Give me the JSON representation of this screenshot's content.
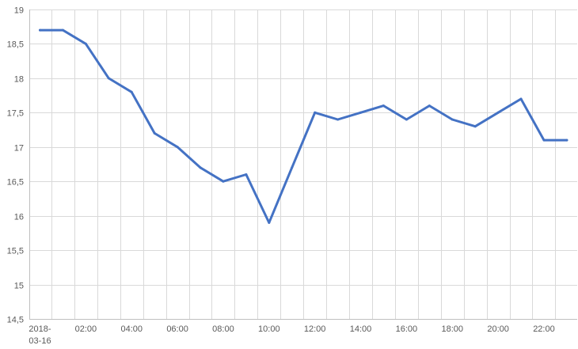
{
  "chart_data": {
    "type": "line",
    "title": "",
    "xlabel": "",
    "ylabel": "",
    "ylim": [
      14.5,
      19
    ],
    "y_ticks": [
      "14,5",
      "15",
      "15,5",
      "16",
      "16,5",
      "17",
      "17,5",
      "18",
      "18,5",
      "19"
    ],
    "x_tick_labels": [
      {
        "hour": 0,
        "lines": [
          "2018-",
          "03-16"
        ]
      },
      {
        "hour": 2,
        "lines": [
          "02:00"
        ]
      },
      {
        "hour": 4,
        "lines": [
          "04:00"
        ]
      },
      {
        "hour": 6,
        "lines": [
          "06:00"
        ]
      },
      {
        "hour": 8,
        "lines": [
          "08:00"
        ]
      },
      {
        "hour": 10,
        "lines": [
          "10:00"
        ]
      },
      {
        "hour": 12,
        "lines": [
          "12:00"
        ]
      },
      {
        "hour": 14,
        "lines": [
          "14:00"
        ]
      },
      {
        "hour": 16,
        "lines": [
          "16:00"
        ]
      },
      {
        "hour": 18,
        "lines": [
          "18:00"
        ]
      },
      {
        "hour": 20,
        "lines": [
          "20:00"
        ]
      },
      {
        "hour": 22,
        "lines": [
          "22:00"
        ]
      }
    ],
    "grid": true,
    "color": "#4472c4",
    "series": [
      {
        "x": [
          0,
          1,
          2,
          3,
          4,
          5,
          6,
          7,
          8,
          9,
          10,
          11,
          12,
          13,
          14,
          15,
          16,
          17,
          18,
          19,
          20,
          21,
          22,
          23
        ],
        "values": [
          18.7,
          18.7,
          18.5,
          18.0,
          17.8,
          17.2,
          17.0,
          16.7,
          16.5,
          16.6,
          15.9,
          16.7,
          17.5,
          17.4,
          17.5,
          17.6,
          17.4,
          17.6,
          17.4,
          17.3,
          17.5,
          17.7,
          17.1,
          17.1
        ]
      }
    ]
  }
}
